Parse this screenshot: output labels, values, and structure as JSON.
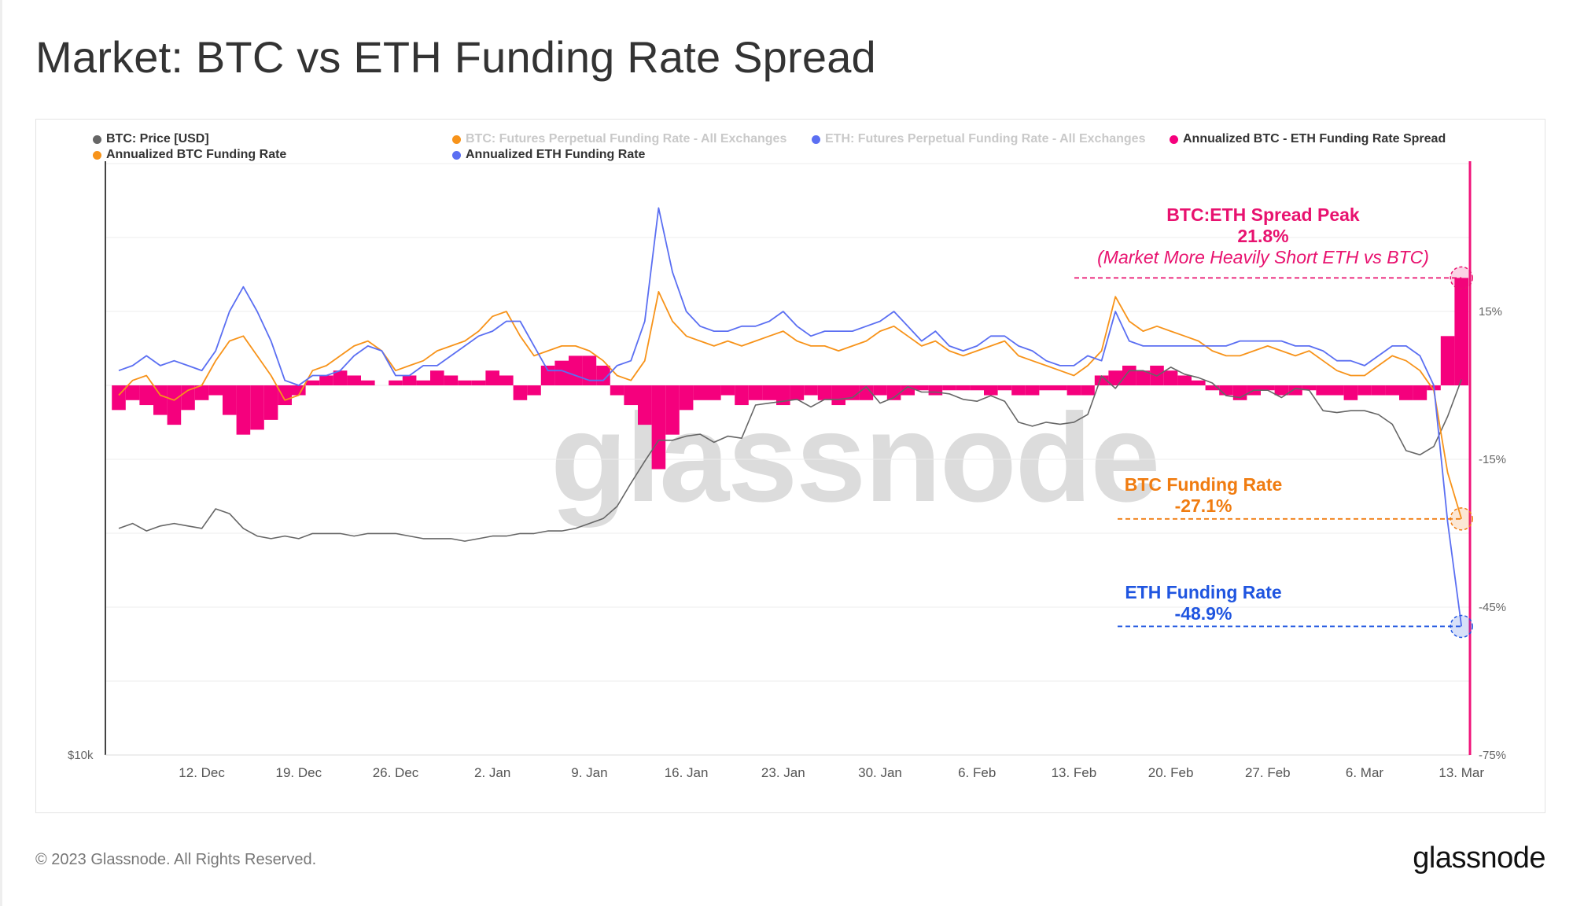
{
  "page": {
    "title": "Market: BTC vs ETH Funding Rate Spread",
    "footer": "© 2023 Glassnode. All Rights Reserved.",
    "logo": "glassnode",
    "watermark": "glassnode"
  },
  "legend": [
    {
      "label": "BTC: Price [USD]",
      "color": "#666666",
      "active": true
    },
    {
      "label": "BTC: Futures Perpetual Funding Rate - All Exchanges",
      "color": "#f7931a",
      "active": false
    },
    {
      "label": "ETH: Futures Perpetual Funding Rate - All Exchanges",
      "color": "#5b6ff2",
      "active": false
    },
    {
      "label": "Annualized BTC - ETH Funding Rate Spread",
      "color": "#f5007d",
      "active": true
    },
    {
      "label": "Annualized BTC Funding Rate",
      "color": "#f7931a",
      "active": true
    },
    {
      "label": "Annualized ETH Funding Rate",
      "color": "#5b6ff2",
      "active": true
    }
  ],
  "annotations": {
    "spread": {
      "title": "BTC:ETH Spread Peak",
      "value": "21.8%",
      "note": "(Market More Heavily Short ETH vs BTC)",
      "color": "#e8126f"
    },
    "btc": {
      "title": "BTC Funding Rate",
      "value": "-27.1%",
      "color": "#f07c10"
    },
    "eth": {
      "title": "ETH Funding Rate",
      "value": "-48.9%",
      "color": "#1f55e0"
    }
  },
  "chart_data": {
    "type": "line",
    "x_start": "2022-12-06",
    "x_end": "2023-03-13",
    "x_ticks": [
      "12. Dec",
      "19. Dec",
      "26. Dec",
      "2. Jan",
      "9. Jan",
      "16. Jan",
      "23. Jan",
      "30. Jan",
      "6. Feb",
      "13. Feb",
      "20. Feb",
      "27. Feb",
      "6. Mar",
      "13. Mar"
    ],
    "y_right": {
      "ticks": [
        "15%",
        "-15%",
        "-45%",
        "-75%"
      ],
      "range": [
        -75,
        45
      ],
      "unit": "%"
    },
    "y_left": {
      "ticks": [
        "$10k"
      ],
      "scale": "log"
    },
    "grid": true,
    "legend_position": "top",
    "series": [
      {
        "name": "Annualized BTC Funding Rate",
        "color": "#f7931a",
        "values": [
          -2,
          1,
          2,
          -2,
          -3,
          -1,
          0,
          5,
          9,
          10,
          6,
          2,
          -3,
          -2,
          3,
          4,
          6,
          8,
          9,
          7,
          3,
          4,
          5,
          7,
          8,
          9,
          11,
          14,
          15,
          10,
          6,
          7,
          8,
          8,
          7,
          5,
          2,
          1,
          5,
          19,
          13,
          10,
          9,
          8,
          9,
          8,
          9,
          10,
          11,
          9,
          8,
          8,
          7,
          8,
          9,
          11,
          12,
          10,
          8,
          9,
          7,
          6,
          7,
          8,
          9,
          6,
          5,
          4,
          3,
          2,
          4,
          7,
          18,
          13,
          11,
          12,
          11,
          10,
          9,
          7,
          6,
          6,
          7,
          8,
          7,
          6,
          7,
          5,
          3,
          2,
          2,
          4,
          6,
          5,
          3,
          -1,
          -17.7,
          -27.1
        ]
      },
      {
        "name": "Annualized ETH Funding Rate",
        "color": "#5b6ff2",
        "values": [
          3,
          4,
          6,
          4,
          5,
          4,
          3,
          7,
          15,
          20,
          15,
          9,
          1,
          0,
          2,
          2,
          3,
          6,
          8,
          7,
          2,
          2,
          4,
          4,
          6,
          8,
          10,
          11,
          13,
          13,
          8,
          3,
          3,
          2,
          1,
          1,
          4,
          5,
          13,
          36,
          23,
          15,
          12,
          11,
          11,
          12,
          12,
          13,
          15,
          12,
          10,
          11,
          11,
          11,
          12,
          13,
          15,
          12,
          9,
          11,
          8,
          7,
          8,
          10,
          10,
          8,
          7,
          5,
          4,
          4,
          6,
          5,
          15,
          9,
          8,
          8,
          8,
          8,
          8,
          8,
          8,
          9,
          9,
          9,
          9,
          8,
          8,
          7,
          5,
          5,
          4,
          6,
          8,
          8,
          6,
          0,
          -27.7,
          -48.9
        ]
      },
      {
        "name": "Annualized BTC - ETH Funding Rate Spread",
        "color": "#f5007d",
        "values": [
          -5,
          -3,
          -4,
          -6,
          -8,
          -5,
          -3,
          -2,
          -6,
          -10,
          -9,
          -7,
          -4,
          -2,
          1,
          2,
          3,
          2,
          1,
          0,
          1,
          2,
          1,
          3,
          2,
          1,
          1,
          3,
          2,
          -3,
          -2,
          4,
          5,
          6,
          6,
          4,
          -2,
          -4,
          -8,
          -17,
          -10,
          -5,
          -3,
          -3,
          -2,
          -4,
          -3,
          -3,
          -4,
          -3,
          -2,
          -3,
          -4,
          -3,
          -3,
          -2,
          -3,
          -2,
          -1,
          -2,
          -1,
          -1,
          -1,
          -2,
          -1,
          -2,
          -2,
          -1,
          -1,
          -2,
          -2,
          2,
          3,
          4,
          3,
          4,
          3,
          2,
          1,
          -1,
          -2,
          -3,
          -2,
          -1,
          -2,
          -2,
          -1,
          -2,
          -2,
          -3,
          -2,
          -2,
          -2,
          -3,
          -3,
          -1,
          10,
          21.8
        ]
      },
      {
        "name": "BTC: Price [USD]",
        "color": "#666666",
        "unit": "thousand USD",
        "values": [
          17.0,
          17.2,
          16.9,
          17.1,
          17.2,
          17.1,
          17.0,
          17.8,
          17.6,
          17.0,
          16.7,
          16.6,
          16.7,
          16.6,
          16.8,
          16.8,
          16.8,
          16.7,
          16.8,
          16.8,
          16.8,
          16.7,
          16.6,
          16.6,
          16.6,
          16.5,
          16.6,
          16.7,
          16.7,
          16.8,
          16.8,
          16.9,
          16.9,
          17.0,
          17.2,
          17.4,
          17.9,
          18.9,
          19.9,
          20.9,
          20.9,
          21.1,
          21.2,
          20.8,
          21.1,
          21.0,
          22.7,
          22.8,
          22.9,
          23.0,
          22.6,
          23.0,
          23.0,
          23.1,
          23.7,
          22.8,
          23.1,
          23.7,
          23.4,
          23.4,
          23.3,
          23.0,
          22.9,
          23.2,
          22.9,
          21.8,
          21.6,
          21.8,
          21.7,
          21.8,
          22.2,
          24.3,
          23.6,
          24.6,
          24.6,
          24.3,
          24.8,
          24.4,
          24.2,
          23.9,
          23.2,
          23.1,
          23.5,
          23.5,
          23.1,
          23.6,
          23.5,
          22.4,
          22.3,
          22.4,
          22.4,
          22.2,
          21.7,
          20.4,
          20.2,
          20.6,
          22.1,
          24.1
        ]
      }
    ]
  }
}
